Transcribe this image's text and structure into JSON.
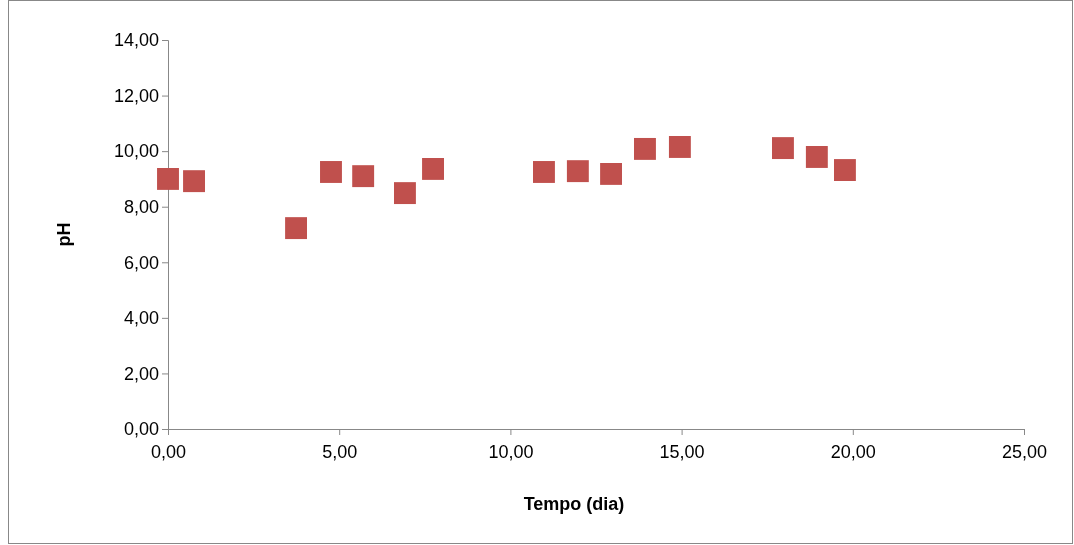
{
  "chart_data": {
    "type": "scatter",
    "xlabel": "Tempo (dia)",
    "ylabel": "pH",
    "x": [
      0,
      0.76,
      3.74,
      4.76,
      5.7,
      6.92,
      7.74,
      10.98,
      11.97,
      12.94,
      13.93,
      14.95,
      17.96,
      18.95,
      19.77
    ],
    "series": [
      {
        "color": "#c0504d",
        "values": [
          9.0,
          8.92,
          7.23,
          9.25,
          9.1,
          8.49,
          9.36,
          9.25,
          9.28,
          9.18,
          10.08,
          10.15,
          10.11,
          9.79,
          9.32
        ]
      }
    ],
    "xlim": [
      0,
      25
    ],
    "xticks": [
      {
        "value": 0,
        "label": "0,00"
      },
      {
        "value": 5,
        "label": "5,00"
      },
      {
        "value": 10,
        "label": "10,00"
      },
      {
        "value": 15,
        "label": "15,00"
      },
      {
        "value": 20,
        "label": "20,00"
      },
      {
        "value": 25,
        "label": "25,00"
      }
    ],
    "ylim": [
      0,
      14
    ],
    "yticks": [
      {
        "value": 0,
        "label": "0,00"
      },
      {
        "value": 2,
        "label": "2,00"
      },
      {
        "value": 4,
        "label": "4,00"
      },
      {
        "value": 6,
        "label": "6,00"
      },
      {
        "value": 8,
        "label": "8,00"
      },
      {
        "value": 10,
        "label": "10,00"
      },
      {
        "value": 12,
        "label": "12,00"
      },
      {
        "value": 14,
        "label": "14,00"
      }
    ],
    "marker": "square",
    "grid": false
  }
}
